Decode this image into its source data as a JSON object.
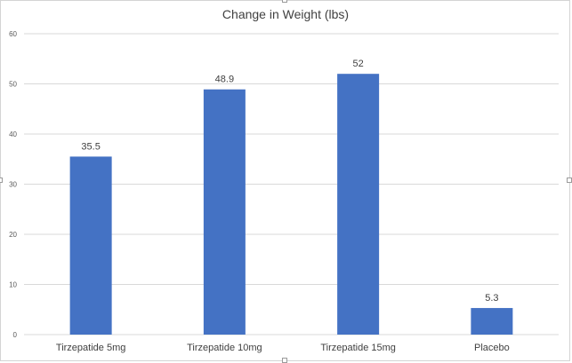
{
  "chart_data": {
    "type": "bar",
    "title": "Change in Weight (lbs)",
    "categories": [
      "Tirzepatide 5mg",
      "Tirzepatide 10mg",
      "Tirzepatide 15mg",
      "Placebo"
    ],
    "values": [
      35.5,
      48.9,
      52,
      5.3
    ],
    "value_labels": [
      "35.5",
      "48.9",
      "52",
      "5.3"
    ],
    "ylim": [
      0,
      60
    ],
    "yticks": [
      0,
      10,
      20,
      30,
      40,
      50,
      60
    ],
    "xlabel": "",
    "ylabel": "",
    "grid": true,
    "legend": "none",
    "bar_color": "#4472c4",
    "grid_color": "#d9d9d9"
  }
}
